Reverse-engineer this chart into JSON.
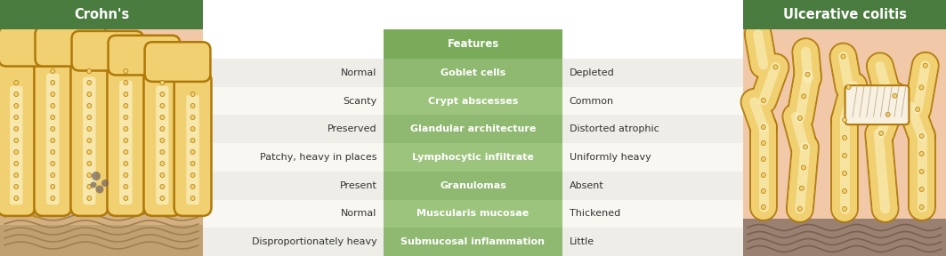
{
  "title_left": "Crohn's",
  "title_right": "Ulcerative colitis",
  "title_bg_color": "#4a7c3f",
  "title_text_color": "#ffffff",
  "header_feature": "Features",
  "header_bg_color": "#7aab5a",
  "row_bg_even": "#eeede8",
  "row_bg_odd": "#f8f7f2",
  "center_bg_even": "#8fb870",
  "center_bg_odd": "#9cc47c",
  "center_text_color": "#ffffff",
  "side_text_color": "#333333",
  "tissue_bg": "#f2c9a8",
  "villi_outer": "#d4900a",
  "villi_fill": "#f0d080",
  "villi_inner": "#f8eab8",
  "bottom_left_bg": "#d4b090",
  "bottom_right_bg": "#a08070",
  "rows": [
    {
      "left": "Normal",
      "center": "Goblet cells",
      "right": "Depleted"
    },
    {
      "left": "Scanty",
      "center": "Crypt abscesses",
      "right": "Common"
    },
    {
      "left": "Preserved",
      "center": "Glandular architecture",
      "right": "Distorted atrophic"
    },
    {
      "left": "Patchy, heavy in places",
      "center": "Lymphocytic infiltrate",
      "right": "Uniformly heavy"
    },
    {
      "left": "Present",
      "center": "Granulomas",
      "right": "Absent"
    },
    {
      "left": "Normal",
      "center": "Muscularis mucosae",
      "right": "Thickened"
    },
    {
      "left": "Disproportionately heavy",
      "center": "Submucosal inflammation",
      "right": "Little"
    }
  ],
  "fig_width": 10.63,
  "fig_height": 2.88,
  "dpi": 100
}
